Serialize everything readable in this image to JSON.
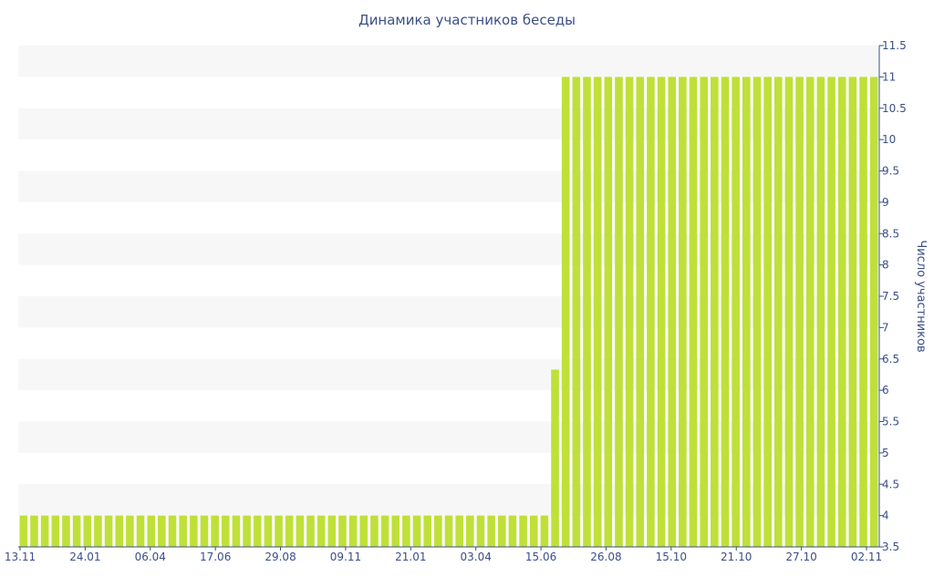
{
  "chart_data": {
    "type": "bar",
    "title": "Динамика участников беседы",
    "xlabel": "",
    "ylabel": "Число участников",
    "ylim": [
      3.5,
      11.5
    ],
    "yticks": [
      "3.5",
      "4",
      "4.5",
      "5",
      "5.5",
      "6",
      "6.5",
      "7",
      "7.5",
      "8",
      "8.5",
      "9",
      "9.5",
      "10",
      "10.5",
      "11",
      "11.5"
    ],
    "x_tick_labels": [
      "13.11",
      "24.01",
      "06.04",
      "17.06",
      "29.08",
      "09.11",
      "21.01",
      "03.04",
      "15.06",
      "26.08",
      "15.10",
      "21.10",
      "27.10",
      "02.11"
    ],
    "values": [
      4,
      4,
      4,
      4,
      4,
      4,
      4,
      4,
      4,
      4,
      4,
      4,
      4,
      4,
      4,
      4,
      4,
      4,
      4,
      4,
      4,
      4,
      4,
      4,
      4,
      4,
      4,
      4,
      4,
      4,
      4,
      4,
      4,
      4,
      4,
      4,
      4,
      4,
      4,
      4,
      4,
      4,
      4,
      4,
      4,
      4,
      4,
      4,
      4,
      4,
      6.33,
      11,
      11,
      11,
      11,
      11,
      11,
      11,
      11,
      11,
      11,
      11,
      11,
      11,
      11,
      11,
      11,
      11,
      11,
      11,
      11,
      11,
      11,
      11,
      11,
      11,
      11,
      11,
      11,
      11,
      11
    ],
    "bar_color": "#bfe039",
    "band_color": "#f7f7f7",
    "axis_color": "#3b4f86",
    "grid": "alternating-bands",
    "y_axis_side": "right",
    "legend": "none"
  }
}
